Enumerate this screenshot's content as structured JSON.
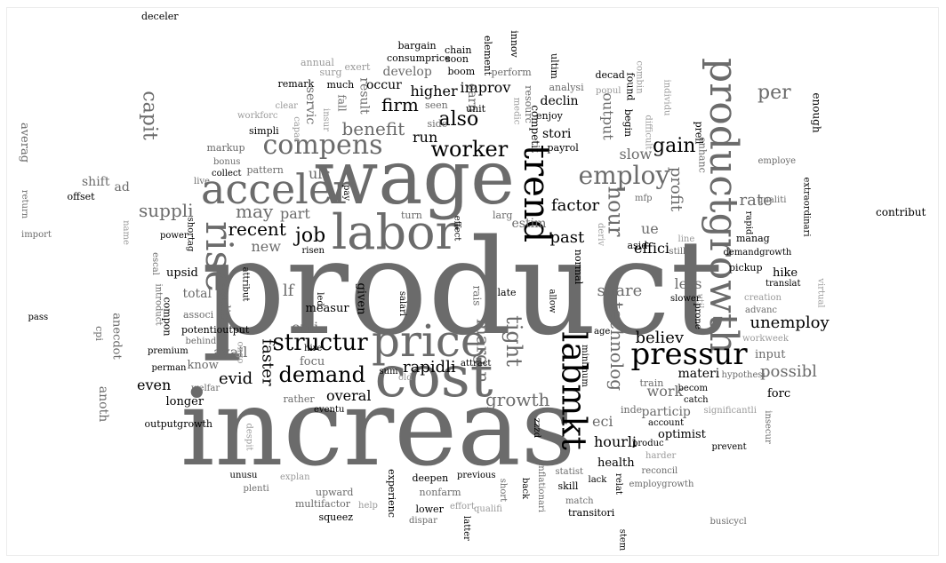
{
  "colors": {
    "dark": "#000000",
    "mid": "#6b6b6b",
    "light": "#9a9a9a",
    "background": "#ffffff"
  },
  "words": [
    {
      "text": "product",
      "tone": "mid"
    },
    {
      "text": "increas",
      "tone": "mid"
    },
    {
      "text": "wage",
      "tone": "mid"
    },
    {
      "text": "cost",
      "tone": "mid"
    },
    {
      "text": "price",
      "tone": "mid"
    },
    {
      "text": "labor",
      "tone": "mid"
    },
    {
      "text": "acceler",
      "tone": "mid"
    },
    {
      "text": "productgrowth",
      "tone": "mid"
    },
    {
      "text": "labmkt",
      "tone": "dark"
    },
    {
      "text": "trend",
      "tone": "dark"
    },
    {
      "text": "rise",
      "tone": "mid"
    },
    {
      "text": "pressur",
      "tone": "dark"
    },
    {
      "text": "compens",
      "tone": "mid"
    },
    {
      "text": "employ",
      "tone": "mid"
    },
    {
      "text": "structur",
      "tone": "dark"
    },
    {
      "text": "demand",
      "tone": "dark"
    },
    {
      "text": "worker",
      "tone": "dark"
    },
    {
      "text": "tight",
      "tone": "mid"
    },
    {
      "text": "job",
      "tone": "dark"
    },
    {
      "text": "faster",
      "tone": "dark"
    },
    {
      "text": "recent",
      "tone": "dark"
    },
    {
      "text": "benefit",
      "tone": "mid"
    },
    {
      "text": "firm",
      "tone": "dark"
    },
    {
      "text": "also",
      "tone": "dark"
    },
    {
      "text": "may",
      "tone": "mid"
    },
    {
      "text": "suppli",
      "tone": "mid"
    },
    {
      "text": "gain",
      "tone": "dark"
    },
    {
      "text": "hour",
      "tone": "mid"
    },
    {
      "text": "capit",
      "tone": "mid"
    },
    {
      "text": "per",
      "tone": "mid"
    },
    {
      "text": "growth",
      "tone": "mid"
    },
    {
      "text": "margin",
      "tone": "mid"
    },
    {
      "text": "technolog",
      "tone": "mid"
    },
    {
      "text": "rapidli",
      "tone": "dark"
    },
    {
      "text": "factor",
      "tone": "dark"
    },
    {
      "text": "past",
      "tone": "dark"
    },
    {
      "text": "rate",
      "tone": "mid"
    },
    {
      "text": "profit",
      "tone": "mid"
    },
    {
      "text": "possibl",
      "tone": "mid"
    },
    {
      "text": "unemploy",
      "tone": "dark"
    },
    {
      "text": "believ",
      "tone": "dark"
    },
    {
      "text": "evid",
      "tone": "dark"
    },
    {
      "text": "even",
      "tone": "dark"
    },
    {
      "text": "overal",
      "tone": "dark"
    },
    {
      "text": "work",
      "tone": "mid"
    },
    {
      "text": "improv",
      "tone": "dark"
    },
    {
      "text": "higher",
      "tone": "dark"
    },
    {
      "text": "share",
      "tone": "mid"
    },
    {
      "text": "ulc",
      "tone": "mid"
    },
    {
      "text": "effici",
      "tone": "dark"
    },
    {
      "text": "slow",
      "tone": "mid"
    },
    {
      "text": "lf",
      "tone": "mid"
    },
    {
      "text": "cyclic",
      "tone": "mid"
    },
    {
      "text": "output",
      "tone": "mid"
    },
    {
      "text": "part",
      "tone": "mid"
    },
    {
      "text": "new",
      "tone": "mid"
    },
    {
      "text": "onli",
      "tone": "mid"
    },
    {
      "text": "less",
      "tone": "mid"
    },
    {
      "text": "ue",
      "tone": "mid"
    },
    {
      "text": "run",
      "tone": "dark"
    },
    {
      "text": "eci",
      "tone": "mid"
    },
    {
      "text": "hourli",
      "tone": "dark"
    },
    {
      "text": "avail",
      "tone": "mid"
    },
    {
      "text": "result",
      "tone": "mid"
    },
    {
      "text": "estim",
      "tone": "mid"
    },
    {
      "text": "particip",
      "tone": "mid"
    },
    {
      "text": "materi",
      "tone": "dark"
    },
    {
      "text": "develop",
      "tone": "mid"
    },
    {
      "text": "servic",
      "tone": "mid"
    },
    {
      "text": "earn",
      "tone": "mid"
    },
    {
      "text": "occur",
      "tone": "dark"
    },
    {
      "text": "declin",
      "tone": "dark"
    },
    {
      "text": "stori",
      "tone": "dark"
    },
    {
      "text": "competit",
      "tone": "dark"
    },
    {
      "text": "shift",
      "tone": "mid"
    },
    {
      "text": "ad",
      "tone": "mid"
    },
    {
      "text": "averag",
      "tone": "mid"
    },
    {
      "text": "anoth",
      "tone": "mid"
    },
    {
      "text": "total",
      "tone": "mid"
    },
    {
      "text": "know",
      "tone": "mid"
    },
    {
      "text": "longer",
      "tone": "dark"
    },
    {
      "text": "optimist",
      "tone": "dark"
    },
    {
      "text": "health",
      "tone": "dark"
    },
    {
      "text": "forc",
      "tone": "dark"
    },
    {
      "text": "input",
      "tone": "mid"
    },
    {
      "text": "focu",
      "tone": "mid"
    },
    {
      "text": "measur",
      "tone": "dark"
    },
    {
      "text": "upsid",
      "tone": "dark"
    },
    {
      "text": "given",
      "tone": "dark"
    },
    {
      "text": "hike",
      "tone": "dark"
    },
    {
      "text": "anecdot",
      "tone": "mid"
    },
    {
      "text": "enough",
      "tone": "dark"
    },
    {
      "text": "contribut",
      "tone": "dark"
    },
    {
      "text": "deceler",
      "tone": "dark"
    },
    {
      "text": "bargain",
      "tone": "dark"
    },
    {
      "text": "chain",
      "tone": "dark"
    },
    {
      "text": "consumprice",
      "tone": "dark"
    },
    {
      "text": "soon",
      "tone": "dark"
    },
    {
      "text": "element",
      "tone": "dark"
    },
    {
      "text": "innov",
      "tone": "dark"
    },
    {
      "text": "annual",
      "tone": "light"
    },
    {
      "text": "exert",
      "tone": "light"
    },
    {
      "text": "surg",
      "tone": "light"
    },
    {
      "text": "boom",
      "tone": "dark"
    },
    {
      "text": "perform",
      "tone": "mid"
    },
    {
      "text": "ultim",
      "tone": "dark"
    },
    {
      "text": "decad",
      "tone": "dark"
    },
    {
      "text": "found",
      "tone": "dark"
    },
    {
      "text": "combin",
      "tone": "light"
    },
    {
      "text": "remark",
      "tone": "dark"
    },
    {
      "text": "much",
      "tone": "dark"
    },
    {
      "text": "fall",
      "tone": "mid"
    },
    {
      "text": "seen",
      "tone": "mid"
    },
    {
      "text": "resourc",
      "tone": "mid"
    },
    {
      "text": "analysi",
      "tone": "mid"
    },
    {
      "text": "popul",
      "tone": "light"
    },
    {
      "text": "individu",
      "tone": "light"
    },
    {
      "text": "workforc",
      "tone": "light"
    },
    {
      "text": "clear",
      "tone": "light"
    },
    {
      "text": "insur",
      "tone": "light"
    },
    {
      "text": "side",
      "tone": "mid"
    },
    {
      "text": "unit",
      "tone": "dark"
    },
    {
      "text": "medic",
      "tone": "light"
    },
    {
      "text": "enjoy",
      "tone": "dark"
    },
    {
      "text": "begin",
      "tone": "dark"
    },
    {
      "text": "difficult",
      "tone": "light"
    },
    {
      "text": "simpli",
      "tone": "dark"
    },
    {
      "text": "capac",
      "tone": "light"
    },
    {
      "text": "payrol",
      "tone": "dark"
    },
    {
      "text": "prell",
      "tone": "dark"
    },
    {
      "text": "markup",
      "tone": "mid"
    },
    {
      "text": "enhanc",
      "tone": "mid"
    },
    {
      "text": "employe",
      "tone": "mid"
    },
    {
      "text": "bonus",
      "tone": "mid"
    },
    {
      "text": "collect",
      "tone": "dark"
    },
    {
      "text": "pattern",
      "tone": "mid"
    },
    {
      "text": "extraordinari",
      "tone": "dark"
    },
    {
      "text": "live",
      "tone": "mid"
    },
    {
      "text": "pay",
      "tone": "dark"
    },
    {
      "text": "mfp",
      "tone": "mid"
    },
    {
      "text": "qualiti",
      "tone": "mid"
    },
    {
      "text": "return",
      "tone": "mid"
    },
    {
      "text": "offset",
      "tone": "dark"
    },
    {
      "text": "rapid",
      "tone": "dark"
    },
    {
      "text": "turn",
      "tone": "mid"
    },
    {
      "text": "larg",
      "tone": "mid"
    },
    {
      "text": "import",
      "tone": "mid"
    },
    {
      "text": "name",
      "tone": "light"
    },
    {
      "text": "power",
      "tone": "dark"
    },
    {
      "text": "shortag",
      "tone": "dark"
    },
    {
      "text": "effect",
      "tone": "dark"
    },
    {
      "text": "deriv",
      "tone": "light"
    },
    {
      "text": "asid",
      "tone": "dark"
    },
    {
      "text": "line",
      "tone": "light"
    },
    {
      "text": "manag",
      "tone": "dark"
    },
    {
      "text": "still",
      "tone": "mid"
    },
    {
      "text": "risen",
      "tone": "dark"
    },
    {
      "text": "demandgrowth",
      "tone": "dark"
    },
    {
      "text": "escal",
      "tone": "mid"
    },
    {
      "text": "normal",
      "tone": "dark"
    },
    {
      "text": "pickup",
      "tone": "dark"
    },
    {
      "text": "translat",
      "tone": "dark"
    },
    {
      "text": "attribut",
      "tone": "dark"
    },
    {
      "text": "virtual",
      "tone": "light"
    },
    {
      "text": "introduct",
      "tone": "mid"
    },
    {
      "text": "led",
      "tone": "dark"
    },
    {
      "text": "rais",
      "tone": "mid"
    },
    {
      "text": "late",
      "tone": "dark"
    },
    {
      "text": "allow",
      "tone": "dark"
    },
    {
      "text": "util",
      "tone": "light"
    },
    {
      "text": "creation",
      "tone": "light"
    },
    {
      "text": "compon",
      "tone": "dark"
    },
    {
      "text": "salari",
      "tone": "dark"
    },
    {
      "text": "prone",
      "tone": "dark"
    },
    {
      "text": "slower",
      "tone": "dark"
    },
    {
      "text": "pass",
      "tone": "dark"
    },
    {
      "text": "associ",
      "tone": "mid"
    },
    {
      "text": "advanc",
      "tone": "mid"
    },
    {
      "text": "potentioutput",
      "tone": "dark"
    },
    {
      "text": "cpi",
      "tone": "mid"
    },
    {
      "text": "age",
      "tone": "dark"
    },
    {
      "text": "behind",
      "tone": "mid"
    },
    {
      "text": "workweek",
      "tone": "light"
    },
    {
      "text": "ongo",
      "tone": "light"
    },
    {
      "text": "premium",
      "tone": "dark"
    },
    {
      "text": "hire",
      "tone": "dark"
    },
    {
      "text": "attract",
      "tone": "dark"
    },
    {
      "text": "minimum",
      "tone": "dark"
    },
    {
      "text": "perman",
      "tone": "dark"
    },
    {
      "text": "sum",
      "tone": "dark"
    },
    {
      "text": "old",
      "tone": "light"
    },
    {
      "text": "train",
      "tone": "mid"
    },
    {
      "text": "hypothesi",
      "tone": "mid"
    },
    {
      "text": "welfar",
      "tone": "mid"
    },
    {
      "text": "becom",
      "tone": "dark"
    },
    {
      "text": "rather",
      "tone": "mid"
    },
    {
      "text": "catch",
      "tone": "dark"
    },
    {
      "text": "significantli",
      "tone": "light"
    },
    {
      "text": "eventu",
      "tone": "dark"
    },
    {
      "text": "inde",
      "tone": "mid"
    },
    {
      "text": "account",
      "tone": "dark"
    },
    {
      "text": "insecur",
      "tone": "mid"
    },
    {
      "text": "outputgrowth",
      "tone": "dark"
    },
    {
      "text": "despit",
      "tone": "light"
    },
    {
      "text": "zzzd",
      "tone": "dark"
    },
    {
      "text": "produc",
      "tone": "dark"
    },
    {
      "text": "prevent",
      "tone": "dark"
    },
    {
      "text": "harder",
      "tone": "light"
    },
    {
      "text": "explan",
      "tone": "light"
    },
    {
      "text": "unusu",
      "tone": "dark"
    },
    {
      "text": "experienc",
      "tone": "dark"
    },
    {
      "text": "deepen",
      "tone": "dark"
    },
    {
      "text": "previous",
      "tone": "dark"
    },
    {
      "text": "statist",
      "tone": "mid"
    },
    {
      "text": "inflationari",
      "tone": "mid"
    },
    {
      "text": "reconcil",
      "tone": "mid"
    },
    {
      "text": "upward",
      "tone": "mid"
    },
    {
      "text": "plenti",
      "tone": "mid"
    },
    {
      "text": "multifactor",
      "tone": "mid"
    },
    {
      "text": "nonfarm",
      "tone": "mid"
    },
    {
      "text": "short",
      "tone": "mid"
    },
    {
      "text": "skill",
      "tone": "dark"
    },
    {
      "text": "lack",
      "tone": "dark"
    },
    {
      "text": "relat",
      "tone": "dark"
    },
    {
      "text": "employgrowth",
      "tone": "mid"
    },
    {
      "text": "squeez",
      "tone": "dark"
    },
    {
      "text": "back",
      "tone": "dark"
    },
    {
      "text": "help",
      "tone": "light"
    },
    {
      "text": "lower",
      "tone": "dark"
    },
    {
      "text": "effort",
      "tone": "light"
    },
    {
      "text": "qualifi",
      "tone": "light"
    },
    {
      "text": "match",
      "tone": "mid"
    },
    {
      "text": "transitori",
      "tone": "dark"
    },
    {
      "text": "dispar",
      "tone": "mid"
    },
    {
      "text": "latter",
      "tone": "dark"
    },
    {
      "text": "stem",
      "tone": "dark"
    },
    {
      "text": "busicycl",
      "tone": "mid"
    }
  ]
}
